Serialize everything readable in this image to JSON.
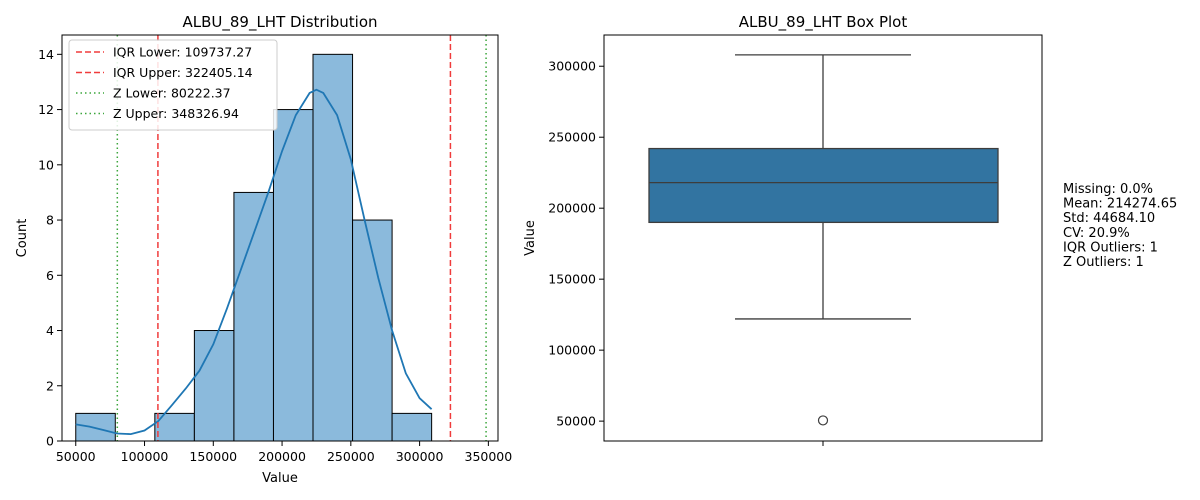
{
  "chart_data": [
    {
      "type": "histogram",
      "title": "ALBU_89_LHT Distribution",
      "xlabel": "Value",
      "ylabel": "Count",
      "xlim": [
        40000,
        357000
      ],
      "ylim": [
        0,
        14.7
      ],
      "xticks": [
        50000,
        100000,
        150000,
        200000,
        250000,
        300000,
        350000
      ],
      "yticks": [
        0,
        2,
        4,
        6,
        8,
        10,
        12,
        14
      ],
      "bin_edges": [
        50000,
        78750,
        107500,
        136250,
        165000,
        193750,
        222500,
        251250,
        280000,
        308750
      ],
      "counts": [
        1,
        0,
        1,
        4,
        9,
        12,
        14,
        8,
        1
      ],
      "bar_color": "#8bbadc",
      "bar_edge": "#000000",
      "kde": {
        "color": "#1f77b4",
        "x": [
          50000,
          60000,
          70000,
          80000,
          90000,
          100000,
          110000,
          120000,
          130000,
          140000,
          150000,
          160000,
          170000,
          180000,
          190000,
          200000,
          210000,
          220000,
          225000,
          230000,
          240000,
          250000,
          260000,
          270000,
          280000,
          290000,
          300000,
          308750
        ],
        "y": [
          0.6,
          0.52,
          0.4,
          0.27,
          0.25,
          0.38,
          0.72,
          1.3,
          1.9,
          2.55,
          3.5,
          4.8,
          6.2,
          7.6,
          9.0,
          10.5,
          11.8,
          12.6,
          12.72,
          12.6,
          11.8,
          10.2,
          8.0,
          5.9,
          4.0,
          2.45,
          1.55,
          1.15
        ]
      },
      "reference_lines": [
        {
          "label": "IQR Lower: 109737.27",
          "value": 109737.27,
          "color": "#f03c3c",
          "style": "dashed"
        },
        {
          "label": "IQR Upper: 322405.14",
          "value": 322405.14,
          "color": "#f03c3c",
          "style": "dashed"
        },
        {
          "label": "Z Lower: 80222.37",
          "value": 80222.37,
          "color": "#3ca63c",
          "style": "dotted"
        },
        {
          "label": "Z Upper: 348326.94",
          "value": 348326.94,
          "color": "#3ca63c",
          "style": "dotted"
        }
      ],
      "legend_position": "upper-left"
    },
    {
      "type": "box",
      "title": "ALBU_89_LHT Box Plot",
      "ylabel": "Value",
      "ylim": [
        36000,
        322000
      ],
      "yticks": [
        50000,
        100000,
        150000,
        200000,
        250000,
        300000
      ],
      "box": {
        "q1": 190000,
        "median": 218000,
        "q3": 242000,
        "whisker_low": 122000,
        "whisker_high": 308000
      },
      "outliers": [
        50500
      ],
      "box_color": "#3274a1",
      "line_color": "#3d3d3d"
    }
  ],
  "stats": {
    "lines": [
      "Missing: 0.0%",
      "Mean: 214274.65",
      "Std: 44684.10",
      "CV: 20.9%",
      "IQR Outliers: 1",
      "Z Outliers: 1"
    ]
  }
}
